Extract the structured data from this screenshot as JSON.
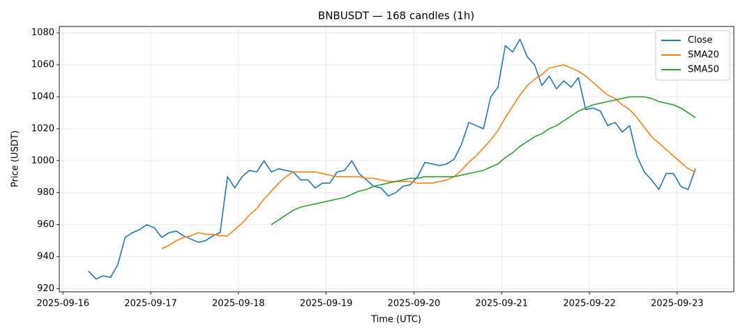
{
  "chart_data": {
    "type": "line",
    "title": "BNBUSDT — 168 candles (1h)",
    "x_label": "Time (UTC)",
    "y_label": "Price (USDT)",
    "x": [
      "2025-09-16T07:00",
      "2025-09-16T09:00",
      "2025-09-16T11:00",
      "2025-09-16T13:00",
      "2025-09-16T15:00",
      "2025-09-16T17:00",
      "2025-09-16T19:00",
      "2025-09-16T21:00",
      "2025-09-16T23:00",
      "2025-09-17T01:00",
      "2025-09-17T03:00",
      "2025-09-17T05:00",
      "2025-09-17T07:00",
      "2025-09-17T09:00",
      "2025-09-17T11:00",
      "2025-09-17T13:00",
      "2025-09-17T15:00",
      "2025-09-17T17:00",
      "2025-09-17T19:00",
      "2025-09-17T21:00",
      "2025-09-17T23:00",
      "2025-09-18T01:00",
      "2025-09-18T03:00",
      "2025-09-18T05:00",
      "2025-09-18T07:00",
      "2025-09-18T09:00",
      "2025-09-18T11:00",
      "2025-09-18T13:00",
      "2025-09-18T15:00",
      "2025-09-18T17:00",
      "2025-09-18T19:00",
      "2025-09-18T21:00",
      "2025-09-18T23:00",
      "2025-09-19T01:00",
      "2025-09-19T03:00",
      "2025-09-19T05:00",
      "2025-09-19T07:00",
      "2025-09-19T09:00",
      "2025-09-19T11:00",
      "2025-09-19T13:00",
      "2025-09-19T15:00",
      "2025-09-19T17:00",
      "2025-09-19T19:00",
      "2025-09-19T21:00",
      "2025-09-19T23:00",
      "2025-09-20T01:00",
      "2025-09-20T03:00",
      "2025-09-20T05:00",
      "2025-09-20T07:00",
      "2025-09-20T09:00",
      "2025-09-20T11:00",
      "2025-09-20T13:00",
      "2025-09-20T15:00",
      "2025-09-20T17:00",
      "2025-09-20T19:00",
      "2025-09-20T21:00",
      "2025-09-20T23:00",
      "2025-09-21T01:00",
      "2025-09-21T03:00",
      "2025-09-21T05:00",
      "2025-09-21T07:00",
      "2025-09-21T09:00",
      "2025-09-21T11:00",
      "2025-09-21T13:00",
      "2025-09-21T15:00",
      "2025-09-21T17:00",
      "2025-09-21T19:00",
      "2025-09-21T21:00",
      "2025-09-21T23:00",
      "2025-09-22T01:00",
      "2025-09-22T03:00",
      "2025-09-22T05:00",
      "2025-09-22T07:00",
      "2025-09-22T09:00",
      "2025-09-22T11:00",
      "2025-09-22T13:00",
      "2025-09-22T15:00",
      "2025-09-22T17:00",
      "2025-09-22T19:00",
      "2025-09-22T21:00",
      "2025-09-22T23:00",
      "2025-09-23T01:00",
      "2025-09-23T03:00",
      "2025-09-23T05:00"
    ],
    "series": [
      {
        "name": "Close",
        "color": "#1f77b4",
        "values": [
          931,
          926,
          928,
          927,
          935,
          952,
          955,
          957,
          960,
          958,
          952,
          955,
          956,
          953,
          951,
          949,
          950,
          953,
          955,
          990,
          983,
          990,
          994,
          993,
          1000,
          993,
          995,
          994,
          993,
          988,
          988,
          983,
          986,
          986,
          993,
          994,
          1000,
          992,
          988,
          984,
          983,
          978,
          980,
          984,
          985,
          990,
          999,
          998,
          997,
          998,
          1001,
          1010,
          1024,
          1022,
          1020,
          1040,
          1046,
          1072,
          1068,
          1076,
          1065,
          1060,
          1047,
          1053,
          1045,
          1050,
          1046,
          1052,
          1032,
          1033,
          1031,
          1022,
          1024,
          1018,
          1022,
          1003,
          993,
          988,
          982,
          992,
          992,
          984,
          982,
          995
        ]
      },
      {
        "name": "SMA20",
        "color": "#ff7f0e",
        "values": [
          null,
          null,
          null,
          null,
          null,
          null,
          null,
          null,
          null,
          null,
          945,
          947,
          950,
          952,
          953,
          955,
          954,
          954,
          953,
          953,
          957,
          961,
          966,
          970,
          976,
          981,
          986,
          990,
          993,
          993,
          993,
          993,
          992,
          991,
          990,
          990,
          990,
          990,
          989,
          989,
          988,
          987,
          987,
          987,
          987,
          986,
          986,
          986,
          987,
          988,
          990,
          994,
          999,
          1003,
          1008,
          1013,
          1019,
          1027,
          1034,
          1041,
          1047,
          1051,
          1054,
          1058,
          1059,
          1060,
          1058,
          1056,
          1053,
          1049,
          1045,
          1041,
          1039,
          1035,
          1032,
          1027,
          1021,
          1015,
          1011,
          1007,
          1003,
          999,
          995,
          993
        ]
      },
      {
        "name": "SMA50",
        "color": "#2ca02c",
        "values": [
          null,
          null,
          null,
          null,
          null,
          null,
          null,
          null,
          null,
          null,
          null,
          null,
          null,
          null,
          null,
          null,
          null,
          null,
          null,
          null,
          null,
          null,
          null,
          null,
          null,
          960,
          963,
          966,
          969,
          971,
          972,
          973,
          974,
          975,
          976,
          977,
          979,
          981,
          982,
          984,
          985,
          986,
          987,
          988,
          989,
          989,
          990,
          990,
          990,
          990,
          990,
          991,
          992,
          993,
          994,
          996,
          998,
          1002,
          1005,
          1009,
          1012,
          1015,
          1017,
          1020,
          1022,
          1025,
          1028,
          1031,
          1033,
          1035,
          1036,
          1037,
          1038,
          1039,
          1040,
          1040,
          1040,
          1039,
          1037,
          1036,
          1035,
          1033,
          1030,
          1027
        ]
      }
    ],
    "xlim": [
      "2025-09-15T23:00",
      "2025-09-23T15:30"
    ],
    "xticks": [
      "2025-09-16",
      "2025-09-17",
      "2025-09-18",
      "2025-09-19",
      "2025-09-20",
      "2025-09-21",
      "2025-09-22",
      "2025-09-23"
    ],
    "ylim": [
      918,
      1084
    ],
    "yticks": [
      920,
      940,
      960,
      980,
      1000,
      1020,
      1040,
      1060,
      1080
    ],
    "grid": true,
    "legend": "upper right"
  }
}
